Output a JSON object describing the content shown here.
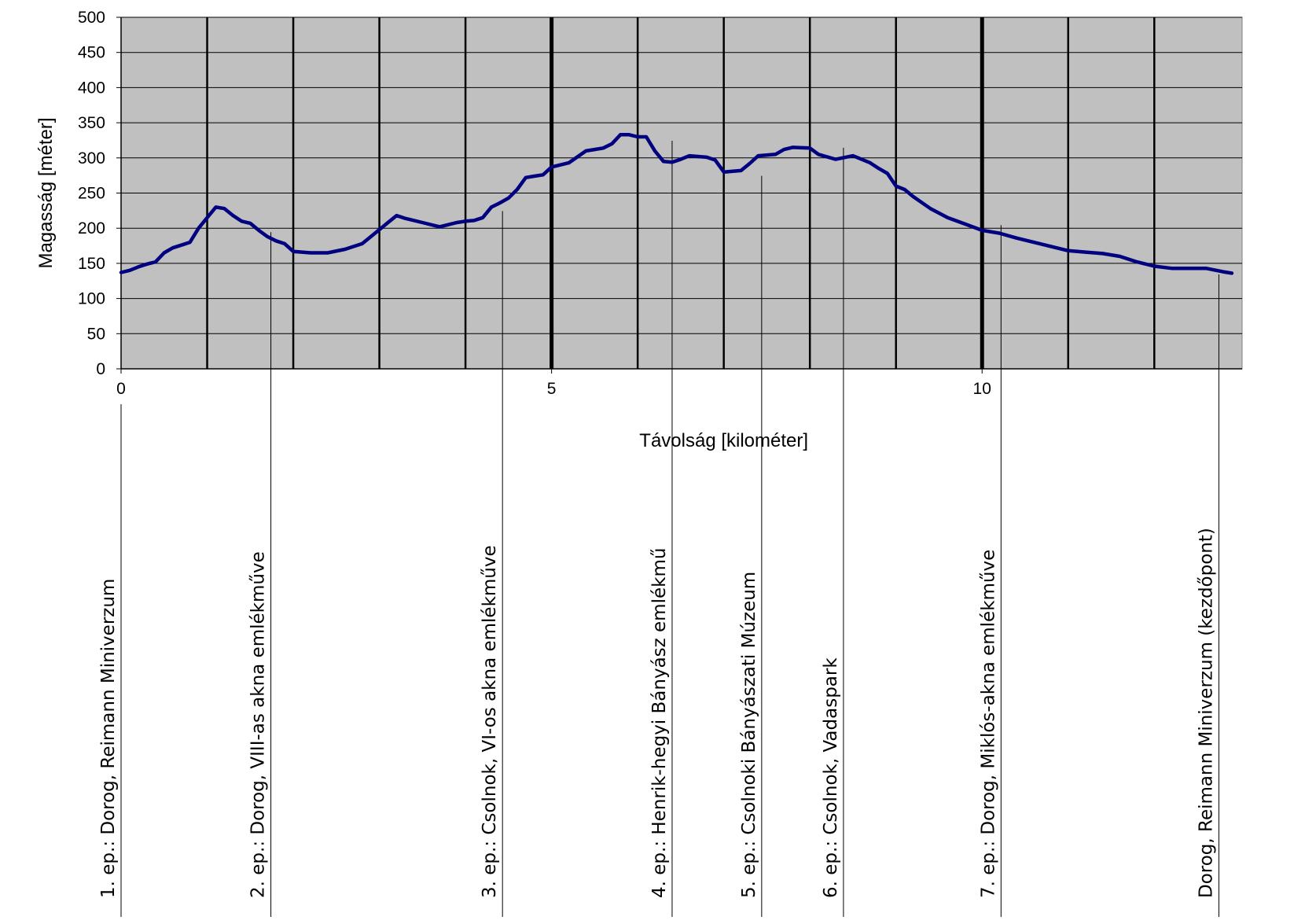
{
  "chart_data": {
    "type": "line",
    "xlabel": "Távolság [kilométer]",
    "ylabel": "Magasság [méter]",
    "xlim": [
      0,
      13
    ],
    "ylim": [
      0,
      500
    ],
    "x_ticks": [
      0,
      5,
      10
    ],
    "y_ticks": [
      0,
      50,
      100,
      150,
      200,
      250,
      300,
      350,
      400,
      450,
      500
    ],
    "x_gridlines": [
      1,
      2,
      3,
      4,
      5,
      6,
      7,
      8,
      9,
      10,
      11,
      12
    ],
    "x_gridlines_bold": [
      5,
      10
    ],
    "plot_background": "#c0c0c0",
    "line_color": "#000080",
    "grid": true,
    "series": [
      {
        "x": [
          0,
          0.1,
          0.2,
          0.3,
          0.4,
          0.5,
          0.6,
          0.7,
          0.8,
          0.9,
          1.0,
          1.1,
          1.2,
          1.3,
          1.4,
          1.5,
          1.6,
          1.7,
          1.8,
          1.9,
          2.0,
          2.2,
          2.4,
          2.6,
          2.8,
          3.0,
          3.1,
          3.2,
          3.3,
          3.5,
          3.7,
          3.8,
          3.9,
          4.0,
          4.1,
          4.2,
          4.3,
          4.4,
          4.5,
          4.6,
          4.7,
          4.8,
          4.9,
          5.0,
          5.2,
          5.4,
          5.5,
          5.6,
          5.7,
          5.8,
          5.9,
          6.0,
          6.1,
          6.2,
          6.3,
          6.4,
          6.5,
          6.6,
          6.7,
          6.8,
          6.9,
          7.0,
          7.2,
          7.3,
          7.4,
          7.6,
          7.7,
          7.8,
          8.0,
          8.1,
          8.3,
          8.5,
          8.7,
          8.8,
          8.9,
          9.0,
          9.1,
          9.2,
          9.4,
          9.6,
          9.8,
          10.0,
          10.2,
          10.4,
          10.6,
          10.8,
          11.0,
          11.2,
          11.4,
          11.6,
          11.8,
          12.0,
          12.2,
          12.6,
          12.8,
          12.9
        ],
        "y": [
          137,
          140,
          145,
          149,
          152,
          165,
          172,
          176,
          180,
          200,
          215,
          230,
          228,
          218,
          210,
          207,
          197,
          188,
          182,
          178,
          167,
          165,
          165,
          170,
          178,
          198,
          208,
          218,
          214,
          208,
          202,
          205,
          208,
          210,
          211,
          215,
          230,
          236,
          243,
          255,
          272,
          274,
          276,
          287,
          293,
          310,
          312,
          314,
          320,
          333,
          333,
          330,
          330,
          310,
          295,
          294,
          298,
          303,
          302,
          301,
          297,
          280,
          282,
          292,
          303,
          305,
          312,
          315,
          314,
          305,
          298,
          303,
          293,
          285,
          278,
          260,
          255,
          245,
          228,
          215,
          206,
          197,
          193,
          186,
          180,
          174,
          168,
          166,
          164,
          160,
          152,
          146,
          143,
          143,
          138,
          136
        ]
      }
    ],
    "stations": [
      {
        "km": 0,
        "label": "1. ep.: Dorog, Reimann Miniverzum"
      },
      {
        "km": 1.74,
        "label": "2. ep.: Dorog, VIII-as akna emlékműve"
      },
      {
        "km": 4.43,
        "label": "3. ep.: Csolnok, VI-os akna emlékműve"
      },
      {
        "km": 6.4,
        "label": "4. ep.: Henrik-hegyi Bányász emlékmű"
      },
      {
        "km": 7.44,
        "label": "5. ep.: Csolnoki Bányászati Múzeum"
      },
      {
        "km": 8.39,
        "label": "6. ep.: Csolnok, Vadaspark"
      },
      {
        "km": 10.22,
        "label": "7. ep.: Dorog, Miklós-akna emlékműve"
      },
      {
        "km": 12.75,
        "label": "Dorog, Reimann Miniverzum (kezdőpont)"
      }
    ]
  }
}
